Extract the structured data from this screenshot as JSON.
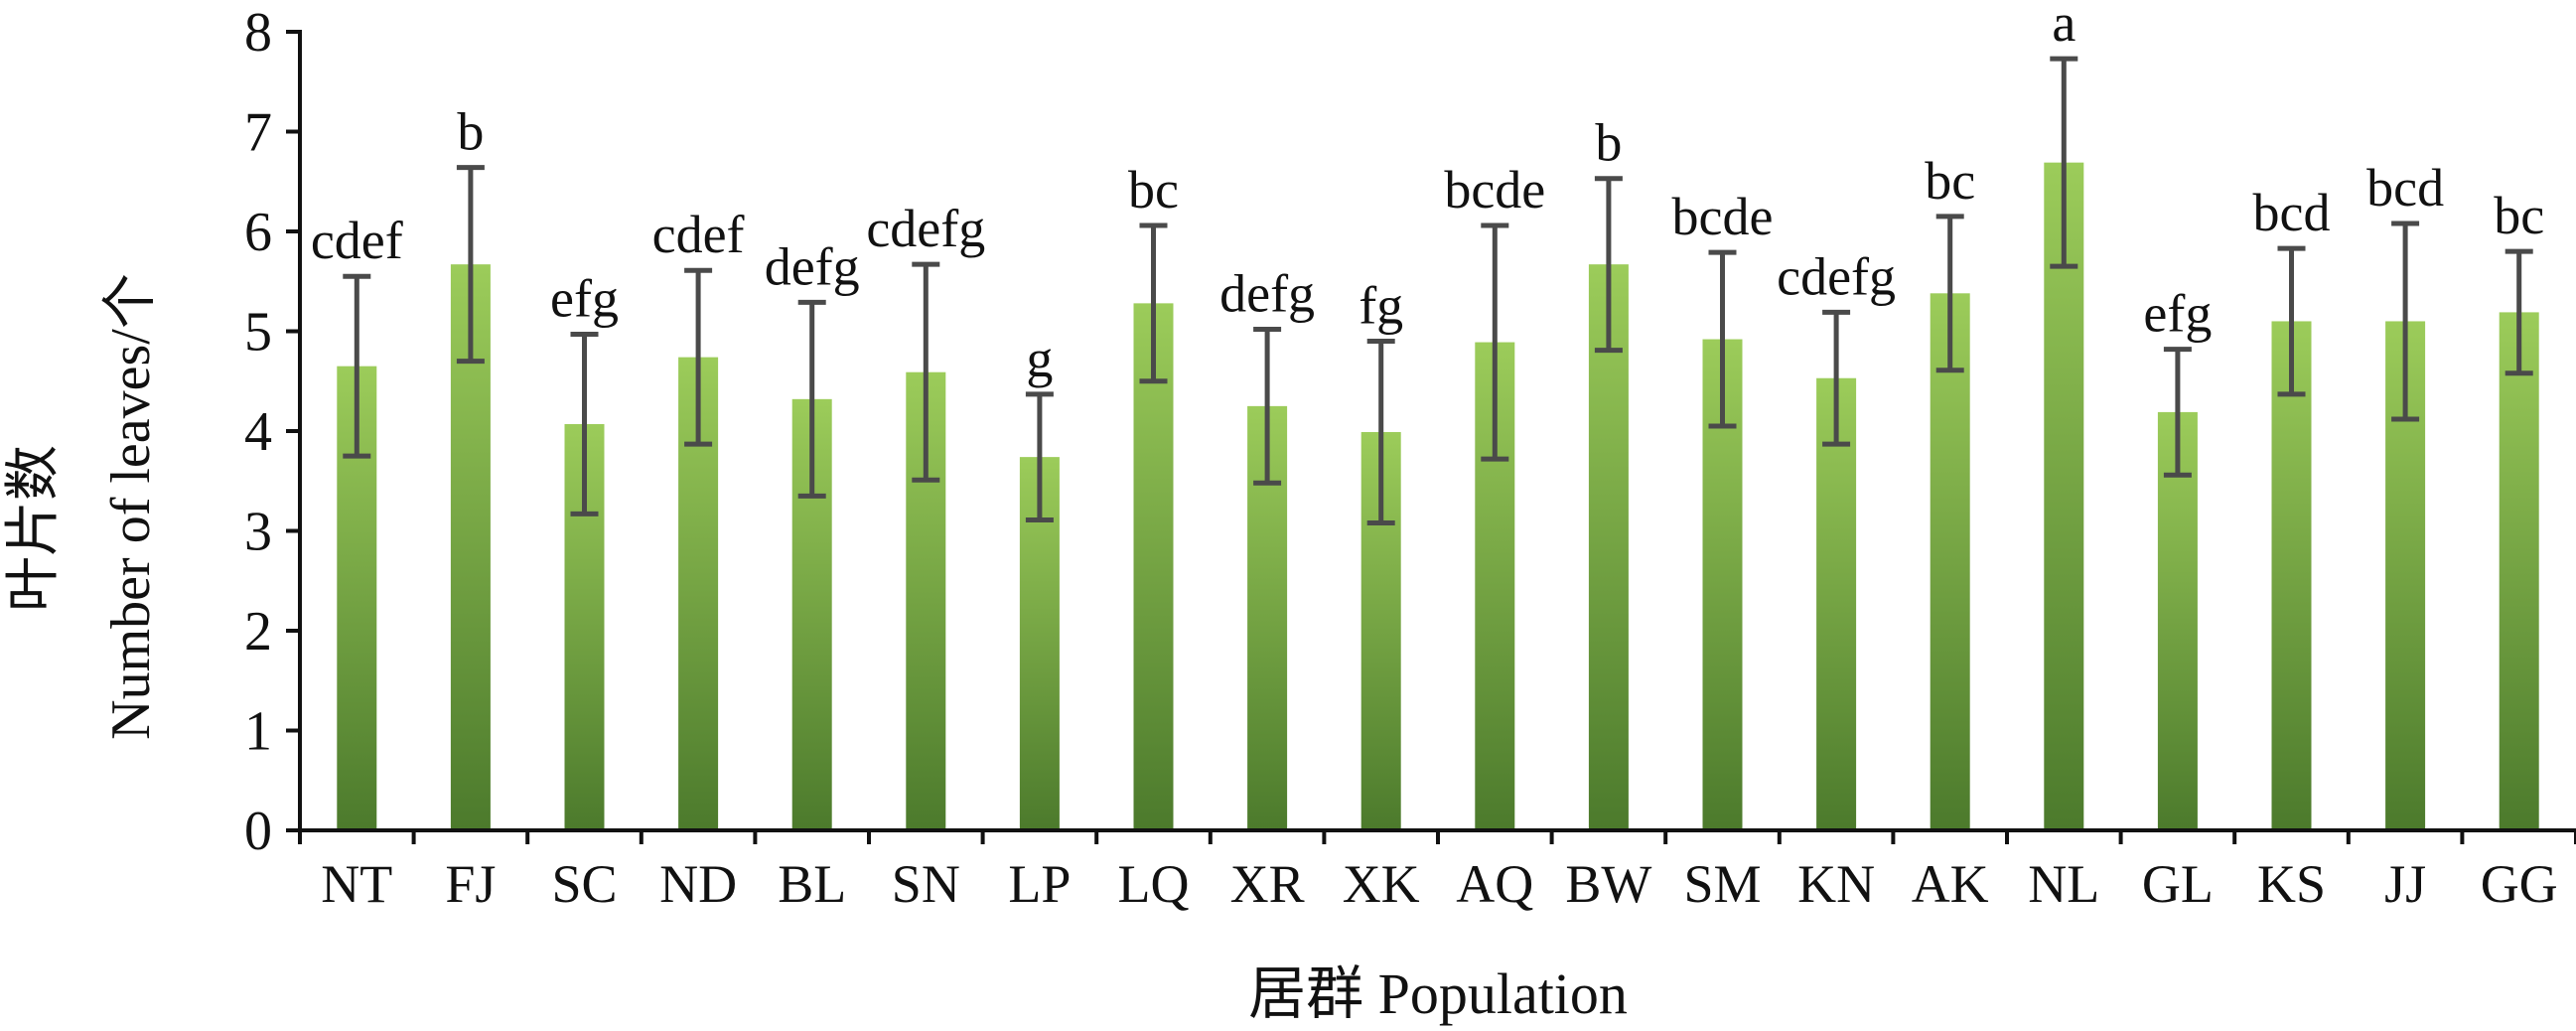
{
  "chart_data": {
    "type": "bar",
    "categories": [
      "NT",
      "FJ",
      "SC",
      "ND",
      "BL",
      "SN",
      "LP",
      "LQ",
      "XR",
      "XK",
      "AQ",
      "BW",
      "SM",
      "KN",
      "AK",
      "NL",
      "GL",
      "KS",
      "JJ",
      "GG"
    ],
    "values": [
      4.65,
      5.67,
      4.07,
      4.74,
      4.32,
      4.59,
      3.74,
      5.28,
      4.25,
      3.99,
      4.89,
      5.67,
      4.92,
      4.53,
      5.38,
      6.69,
      4.19,
      5.1,
      5.1,
      5.19
    ],
    "errors": [
      0.9,
      0.97,
      0.9,
      0.87,
      0.97,
      1.08,
      0.63,
      0.78,
      0.77,
      0.91,
      1.17,
      0.86,
      0.87,
      0.66,
      0.77,
      1.04,
      0.63,
      0.73,
      0.98,
      0.61
    ],
    "significance": [
      "cdef",
      "b",
      "efg",
      "cdef",
      "defg",
      "cdefg",
      "g",
      "bc",
      "defg",
      "fg",
      "bcde",
      "b",
      "bcde",
      "cdefg",
      "bc",
      "a",
      "efg",
      "bcd",
      "bcd",
      "bc"
    ],
    "xlabel": "居群 Population",
    "ylabel_cn": "叶片数",
    "ylabel_en": "Number of leaves/个",
    "ylim": [
      0,
      8
    ],
    "yticks": [
      0,
      1,
      2,
      3,
      4,
      5,
      6,
      7,
      8
    ],
    "grid": false,
    "legend": "none",
    "colors": {
      "bar_top": "#9ccc5a",
      "bar_bottom": "#4c7a2c",
      "error_bar": "#4a4a4a",
      "axis": "#111111"
    }
  }
}
